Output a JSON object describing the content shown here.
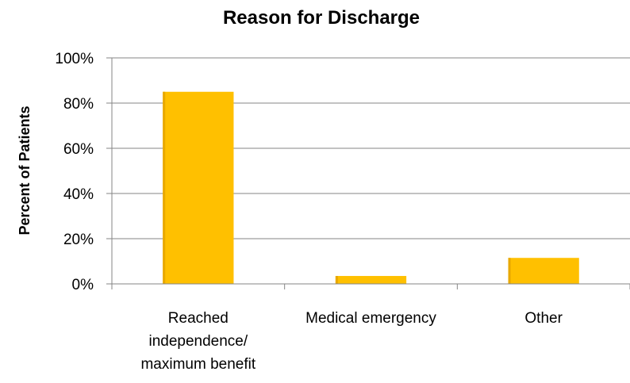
{
  "chart_data": {
    "type": "bar",
    "title": "Reason for Discharge",
    "ylabel": "Percent of Patients",
    "xlabel": "",
    "categories": [
      [
        "Reached",
        "independence/",
        "maximum benefit"
      ],
      [
        "Medical emergency"
      ],
      [
        "Other"
      ]
    ],
    "values": [
      85,
      3.5,
      11.5
    ],
    "ylim": [
      0,
      100
    ],
    "yticks": [
      "0%",
      "20%",
      "40%",
      "60%",
      "80%",
      "100%"
    ],
    "ytick_values": [
      0,
      20,
      40,
      60,
      80,
      100
    ],
    "grid": true,
    "legend": "none",
    "colors": {
      "bar": "#FFC000",
      "bar_shadow": "#E8A800",
      "grid": "#868686",
      "axis": "#868686"
    }
  }
}
